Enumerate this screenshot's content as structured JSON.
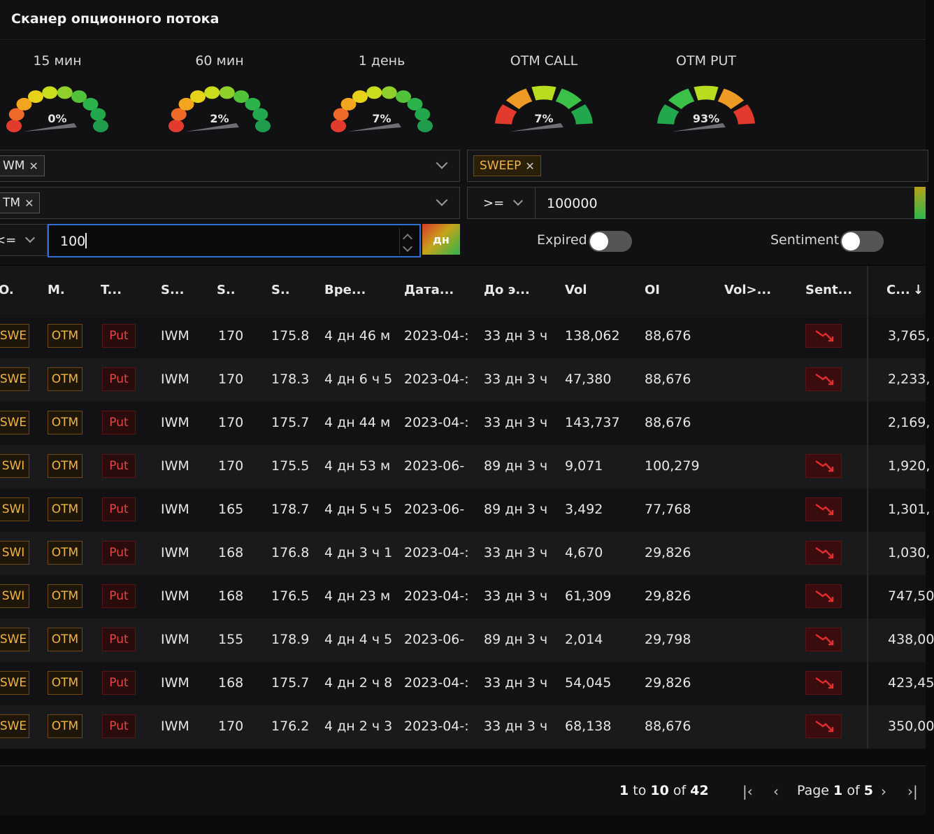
{
  "app": {
    "title": "Сканер опционного потока"
  },
  "gauges": [
    {
      "label": "15 мин",
      "value": "0%",
      "type": "multi"
    },
    {
      "label": "60 мин",
      "value": "2%",
      "type": "multi"
    },
    {
      "label": "1 день",
      "value": "7%",
      "type": "multi"
    },
    {
      "label": "OTM CALL",
      "value": "7%",
      "type": "call"
    },
    {
      "label": "OTM PUT",
      "value": "93%",
      "type": "put"
    }
  ],
  "filters": {
    "symbol_chip": "WM",
    "moneyness_chip": "TM",
    "trade_type_chip": "SWEEP",
    "operator_left": "<=",
    "days_value": "100",
    "days_unit": "дн",
    "operator_right": ">=",
    "premium_value": "100000",
    "expired_label": "Expired",
    "sentiment_label": "Sentiment",
    "colors": {
      "accent": "#2f6fd6",
      "orange": "#f0b545",
      "red": "#e04848"
    }
  },
  "columns": [
    "O.",
    "M.",
    "T...",
    "S...",
    "S..",
    "S..",
    "Вре...",
    "Дата...",
    "До э...",
    "Vol",
    "OI",
    "Vol>...",
    "Sent...",
    "C..."
  ],
  "rows": [
    {
      "o": "SWE",
      "m": "OTM",
      "t": "Put",
      "sym": "IWM",
      "strike": "170",
      "spot": "175.8",
      "time": "4 дн 46 м",
      "date": "2023-04-:",
      "dte": "33 дн 3 ч",
      "vol": "138,062",
      "oi": "88,676",
      "sent": true,
      "cost": "3,765,"
    },
    {
      "o": "SWE",
      "m": "OTM",
      "t": "Put",
      "sym": "IWM",
      "strike": "170",
      "spot": "178.3",
      "time": "4 дн 6 ч 5",
      "date": "2023-04-:",
      "dte": "33 дн 3 ч",
      "vol": "47,380",
      "oi": "88,676",
      "sent": true,
      "cost": "2,233,"
    },
    {
      "o": "SWE",
      "m": "OTM",
      "t": "Put",
      "sym": "IWM",
      "strike": "170",
      "spot": "175.7",
      "time": "4 дн 44 м",
      "date": "2023-04-:",
      "dte": "33 дн 3 ч",
      "vol": "143,737",
      "oi": "88,676",
      "sent": false,
      "cost": "2,169,"
    },
    {
      "o": "SWI",
      "m": "OTM",
      "t": "Put",
      "sym": "IWM",
      "strike": "170",
      "spot": "175.5",
      "time": "4 дн 53 м",
      "date": "2023-06-",
      "dte": "89 дн 3 ч",
      "vol": "9,071",
      "oi": "100,279",
      "sent": true,
      "cost": "1,920,"
    },
    {
      "o": "SWI",
      "m": "OTM",
      "t": "Put",
      "sym": "IWM",
      "strike": "165",
      "spot": "178.7",
      "time": "4 дн 5 ч 5",
      "date": "2023-06-",
      "dte": "89 дн 3 ч",
      "vol": "3,492",
      "oi": "77,768",
      "sent": true,
      "cost": "1,301,"
    },
    {
      "o": "SWI",
      "m": "OTM",
      "t": "Put",
      "sym": "IWM",
      "strike": "168",
      "spot": "176.8",
      "time": "4 дн 3 ч 1",
      "date": "2023-04-:",
      "dte": "33 дн 3 ч",
      "vol": "4,670",
      "oi": "29,826",
      "sent": true,
      "cost": "1,030,"
    },
    {
      "o": "SWI",
      "m": "OTM",
      "t": "Put",
      "sym": "IWM",
      "strike": "168",
      "spot": "176.5",
      "time": "4 дн 23 м",
      "date": "2023-04-:",
      "dte": "33 дн 3 ч",
      "vol": "61,309",
      "oi": "29,826",
      "sent": true,
      "cost": "747,50"
    },
    {
      "o": "SWE",
      "m": "OTM",
      "t": "Put",
      "sym": "IWM",
      "strike": "155",
      "spot": "178.9",
      "time": "4 дн 4 ч 5",
      "date": "2023-06-",
      "dte": "89 дн 3 ч",
      "vol": "2,014",
      "oi": "29,798",
      "sent": true,
      "cost": "438,00"
    },
    {
      "o": "SWE",
      "m": "OTM",
      "t": "Put",
      "sym": "IWM",
      "strike": "168",
      "spot": "175.7",
      "time": "4 дн 2 ч 8",
      "date": "2023-04-:",
      "dte": "33 дн 3 ч",
      "vol": "54,045",
      "oi": "29,826",
      "sent": true,
      "cost": "423,45"
    },
    {
      "o": "SWE",
      "m": "OTM",
      "t": "Put",
      "sym": "IWM",
      "strike": "170",
      "spot": "176.2",
      "time": "4 дн 2 ч 3",
      "date": "2023-04-:",
      "dte": "33 дн 3 ч",
      "vol": "68,138",
      "oi": "88,676",
      "sent": true,
      "cost": "350,00"
    }
  ],
  "pagination": {
    "from": "1",
    "to_word": "to",
    "to": "10",
    "of_word": "of",
    "total": "42",
    "page_word": "Page",
    "page": "1",
    "page_of": "of",
    "pages": "5"
  }
}
